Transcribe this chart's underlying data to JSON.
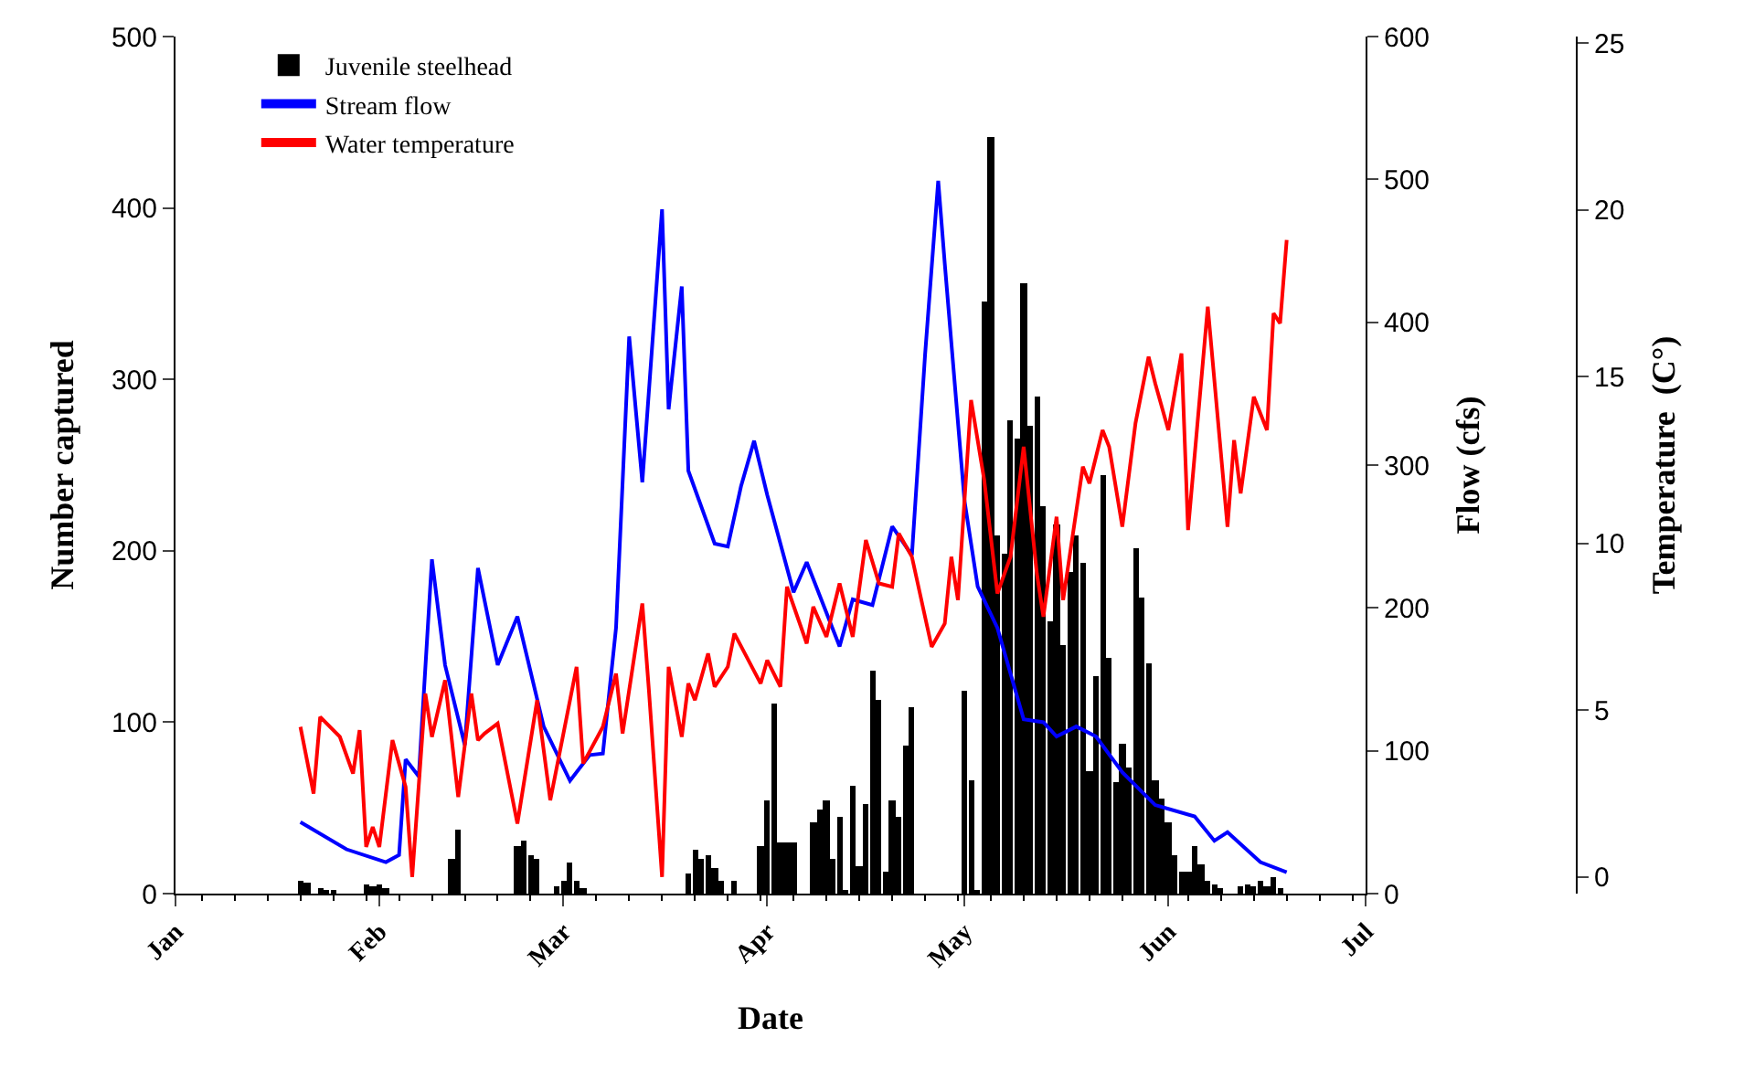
{
  "chart_data": {
    "type": "bar",
    "xlabel": "Date",
    "ylabel": "Number captured",
    "y2label": "Flow (cfs)",
    "y3label": "Temperature  (C°)",
    "xlim": [
      "--01-01",
      "--07-01"
    ],
    "xticks": [
      {
        "value": "--01-01",
        "label": "Jan"
      },
      {
        "value": "--02-01",
        "label": "Feb"
      },
      {
        "value": "--03-01",
        "label": "Mar"
      },
      {
        "value": "--04-01",
        "label": "Apr"
      },
      {
        "value": "--05-01",
        "label": "May"
      },
      {
        "value": "--06-01",
        "label": "Jun"
      },
      {
        "value": "--07-01",
        "label": "Jul"
      }
    ],
    "ylim": [
      0,
      500
    ],
    "yticks": [
      0,
      100,
      200,
      300,
      400,
      500
    ],
    "y2lim": [
      0,
      600
    ],
    "y2ticks": [
      0,
      100,
      200,
      300,
      400,
      500,
      600
    ],
    "y3lim": [
      -0.5,
      25.2
    ],
    "y3ticks": [
      0,
      5,
      10,
      15,
      20,
      25
    ],
    "legend": "top left",
    "marker": "none",
    "series": [
      {
        "name": "Juvenile steelhead",
        "color": "#000000",
        "x": [
          "--01-20",
          "--01-21",
          "--01-23",
          "--01-24",
          "--01-25",
          "--01-30",
          "--01-31",
          "--02-01",
          "--02-02",
          "--02-12",
          "--02-13",
          "--02-22",
          "--02-23",
          "--02-24",
          "--02-25",
          "--02-28",
          "--03-01",
          "--03-02",
          "--03-03",
          "--03-04",
          "--03-20",
          "--03-21",
          "--03-22",
          "--03-23",
          "--03-24",
          "--03-25",
          "--03-27",
          "--03-31",
          "--04-01",
          "--04-02",
          "--04-03",
          "--04-04",
          "--04-05",
          "--04-08",
          "--04-09",
          "--04-10",
          "--04-11",
          "--04-12",
          "--04-13",
          "--04-14",
          "--04-15",
          "--04-16",
          "--04-17",
          "--04-18",
          "--04-19",
          "--04-20",
          "--04-21",
          "--04-22",
          "--04-23",
          "--05-01",
          "--05-02",
          "--05-03",
          "--05-04",
          "--05-05",
          "--05-06",
          "--05-07",
          "--05-08",
          "--05-09",
          "--05-10",
          "--05-11",
          "--05-12",
          "--05-13",
          "--05-14",
          "--05-15",
          "--05-16",
          "--05-17",
          "--05-18",
          "--05-19",
          "--05-20",
          "--05-21",
          "--05-22",
          "--05-23",
          "--05-24",
          "--05-25",
          "--05-26",
          "--05-27",
          "--05-28",
          "--05-29",
          "--05-30",
          "--05-31",
          "--06-01",
          "--06-02",
          "--06-03",
          "--06-04",
          "--06-05",
          "--06-06",
          "--06-07",
          "--06-08",
          "--06-09",
          "--06-12",
          "--06-13",
          "--06-14",
          "--06-15",
          "--06-16",
          "--06-17",
          "--06-18"
        ],
        "values": [
          8,
          6,
          3,
          2,
          2,
          5,
          4,
          5,
          3,
          20,
          37,
          28,
          31,
          22,
          20,
          4,
          8,
          18,
          8,
          3,
          12,
          26,
          20,
          22,
          15,
          8,
          7,
          28,
          54,
          111,
          30,
          30,
          30,
          42,
          49,
          54,
          20,
          45,
          2,
          63,
          16,
          52,
          130,
          113,
          13,
          54,
          45,
          86,
          109,
          118,
          66,
          2,
          345,
          441,
          209,
          198,
          276,
          265,
          356,
          273,
          290,
          226,
          159,
          215,
          145,
          188,
          209,
          193,
          71,
          127,
          244,
          138,
          65,
          87,
          74,
          201,
          173,
          134,
          66,
          55,
          42,
          22,
          13,
          13,
          28,
          17,
          8,
          5,
          3,
          4,
          5,
          4,
          8,
          4,
          10,
          3
        ]
      },
      {
        "name": "Stream flow",
        "type": "line",
        "axis": "y2",
        "color": "#0000ff",
        "x": [
          "--01-20",
          "--01-27",
          "--02-02",
          "--02-04",
          "--02-05",
          "--02-07",
          "--02-09",
          "--02-11",
          "--02-14",
          "--02-16",
          "--02-19",
          "--02-22",
          "--02-26",
          "--03-02",
          "--03-05",
          "--03-07",
          "--03-09",
          "--03-11",
          "--03-13",
          "--03-16",
          "--03-17",
          "--03-19",
          "--03-20",
          "--03-24",
          "--03-26",
          "--03-28",
          "--03-30",
          "--04-01",
          "--04-05",
          "--04-07",
          "--04-12",
          "--04-14",
          "--04-17",
          "--04-20",
          "--04-23",
          "--04-25",
          "--04-27",
          "--04-28",
          "--05-01",
          "--05-03",
          "--05-06",
          "--05-10",
          "--05-13",
          "--05-15",
          "--05-18",
          "--05-21",
          "--05-25",
          "--05-30",
          "--06-05",
          "--06-08",
          "--06-10",
          "--06-15",
          "--06-19"
        ],
        "values": [
          50,
          31,
          22,
          27,
          94,
          82,
          234,
          160,
          104,
          228,
          160,
          194,
          117,
          79,
          97,
          98,
          186,
          390,
          288,
          479,
          339,
          425,
          296,
          245,
          243,
          285,
          317,
          279,
          211,
          232,
          173,
          206,
          202,
          257,
          237,
          377,
          499,
          441,
          275,
          215,
          186,
          122,
          120,
          110,
          117,
          110,
          85,
          62,
          54,
          37,
          43,
          22,
          15
        ]
      },
      {
        "name": "Water temperature",
        "type": "line",
        "axis": "y3",
        "color": "#ff0000",
        "x": [
          "--01-20",
          "--01-22",
          "--01-23",
          "--01-26",
          "--01-28",
          "--01-29",
          "--01-30",
          "--01-31",
          "--02-01",
          "--02-03",
          "--02-05",
          "--02-06",
          "--02-08",
          "--02-09",
          "--02-11",
          "--02-13",
          "--02-15",
          "--02-16",
          "--02-17",
          "--02-19",
          "--02-22",
          "--02-25",
          "--02-27",
          "--03-03",
          "--03-04",
          "--03-07",
          "--03-09",
          "--03-10",
          "--03-13",
          "--03-14",
          "--03-16",
          "--03-17",
          "--03-19",
          "--03-20",
          "--03-21",
          "--03-23",
          "--03-24",
          "--03-26",
          "--03-27",
          "--03-31",
          "--04-01",
          "--04-03",
          "--04-04",
          "--04-07",
          "--04-08",
          "--04-10",
          "--04-12",
          "--04-14",
          "--04-16",
          "--04-18",
          "--04-20",
          "--04-21",
          "--04-23",
          "--04-26",
          "--04-28",
          "--04-29",
          "--04-30",
          "--05-02",
          "--05-04",
          "--05-06",
          "--05-08",
          "--05-10",
          "--05-12",
          "--05-13",
          "--05-15",
          "--05-16",
          "--05-19",
          "--05-20",
          "--05-22",
          "--05-23",
          "--05-25",
          "--05-27",
          "--05-29",
          "--05-30",
          "--06-01",
          "--06-03",
          "--06-04",
          "--06-07",
          "--06-10",
          "--06-11",
          "--06-12",
          "--06-14",
          "--06-16",
          "--06-17",
          "--06-18",
          "--06-19"
        ],
        "values": [
          4.5,
          2.5,
          4.8,
          4.2,
          3.1,
          4.4,
          0.9,
          1.5,
          0.9,
          4.1,
          2.7,
          0,
          5.5,
          4.2,
          5.9,
          2.4,
          5.5,
          4.1,
          4.3,
          4.6,
          1.6,
          5.3,
          2.3,
          6.3,
          3.4,
          4.5,
          6.1,
          4.3,
          8.2,
          5.6,
          0,
          6.3,
          4.2,
          5.8,
          5.3,
          6.7,
          5.7,
          6.3,
          7.3,
          5.8,
          6.5,
          5.7,
          8.7,
          7.0,
          8.1,
          7.2,
          8.8,
          7.2,
          10.1,
          8.8,
          8.7,
          10.3,
          9.6,
          6.9,
          7.6,
          9.6,
          8.3,
          14.3,
          11.9,
          8.5,
          9.6,
          12.9,
          9.1,
          7.8,
          10.8,
          8.3,
          12.3,
          11.8,
          13.4,
          12.9,
          10.5,
          13.6,
          15.6,
          14.8,
          13.4,
          15.7,
          10.4,
          17.1,
          10.5,
          13.1,
          11.5,
          14.4,
          13.4,
          16.9,
          16.6,
          19.1
        ]
      }
    ]
  }
}
